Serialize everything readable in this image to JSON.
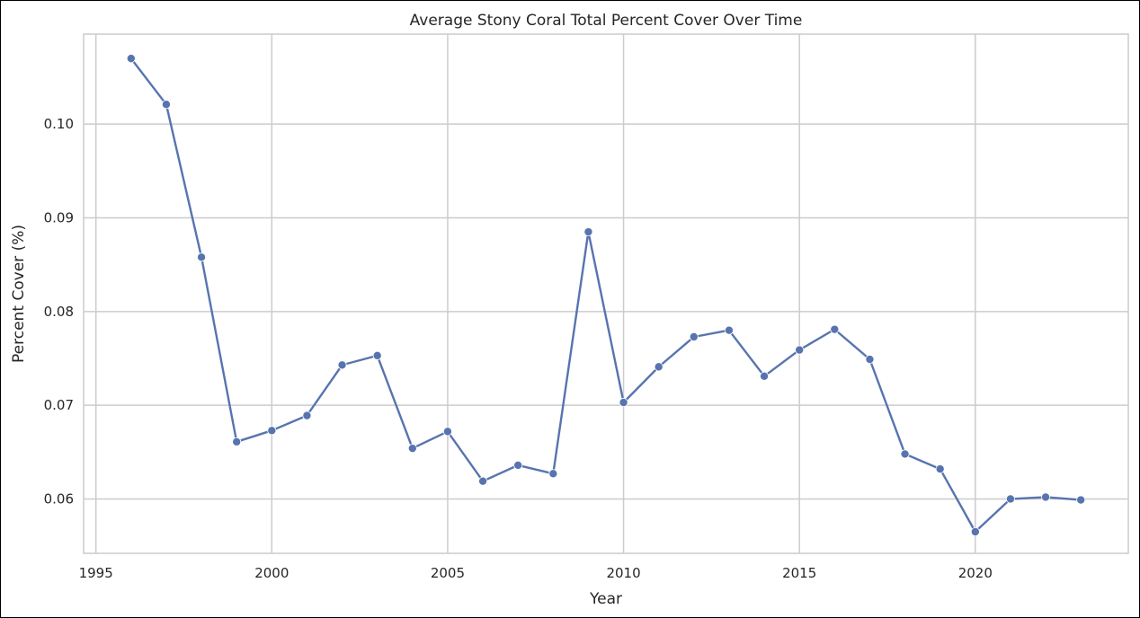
{
  "chart_data": {
    "type": "line",
    "title": "Average Stony Coral Total Percent Cover Over Time",
    "xlabel": "Year",
    "ylabel": "Percent Cover (%)",
    "xlim": [
      1994.65,
      2024.35
    ],
    "ylim": [
      0.0542,
      0.1096
    ],
    "x_ticks": [
      1995,
      2000,
      2005,
      2010,
      2015,
      2020
    ],
    "x_tick_labels": [
      "1995",
      "2000",
      "2005",
      "2010",
      "2015",
      "2020"
    ],
    "y_ticks": [
      0.06,
      0.07,
      0.08,
      0.09,
      0.1
    ],
    "y_tick_labels": [
      "0.06",
      "0.07",
      "0.08",
      "0.09",
      "0.10"
    ],
    "grid": true,
    "series": [
      {
        "color": "#5874af",
        "marker": "circle",
        "x": [
          1996,
          1997,
          1998,
          1999,
          2000,
          2001,
          2002,
          2003,
          2004,
          2005,
          2006,
          2007,
          2008,
          2009,
          2010,
          2011,
          2012,
          2013,
          2014,
          2015,
          2016,
          2017,
          2018,
          2019,
          2020,
          2021,
          2022,
          2023
        ],
        "values": [
          0.107,
          0.1021,
          0.0858,
          0.0661,
          0.0673,
          0.0689,
          0.0743,
          0.0753,
          0.0654,
          0.0672,
          0.0619,
          0.0636,
          0.0627,
          0.0885,
          0.0703,
          0.0741,
          0.0773,
          0.078,
          0.0731,
          0.0759,
          0.0781,
          0.0749,
          0.0648,
          0.0632,
          0.0565,
          0.06,
          0.0602,
          0.0599
        ]
      }
    ]
  },
  "colors": {
    "axes_edge": "#cccccc",
    "grid": "#cccccc",
    "text": "#262626",
    "series": "#5874af"
  }
}
